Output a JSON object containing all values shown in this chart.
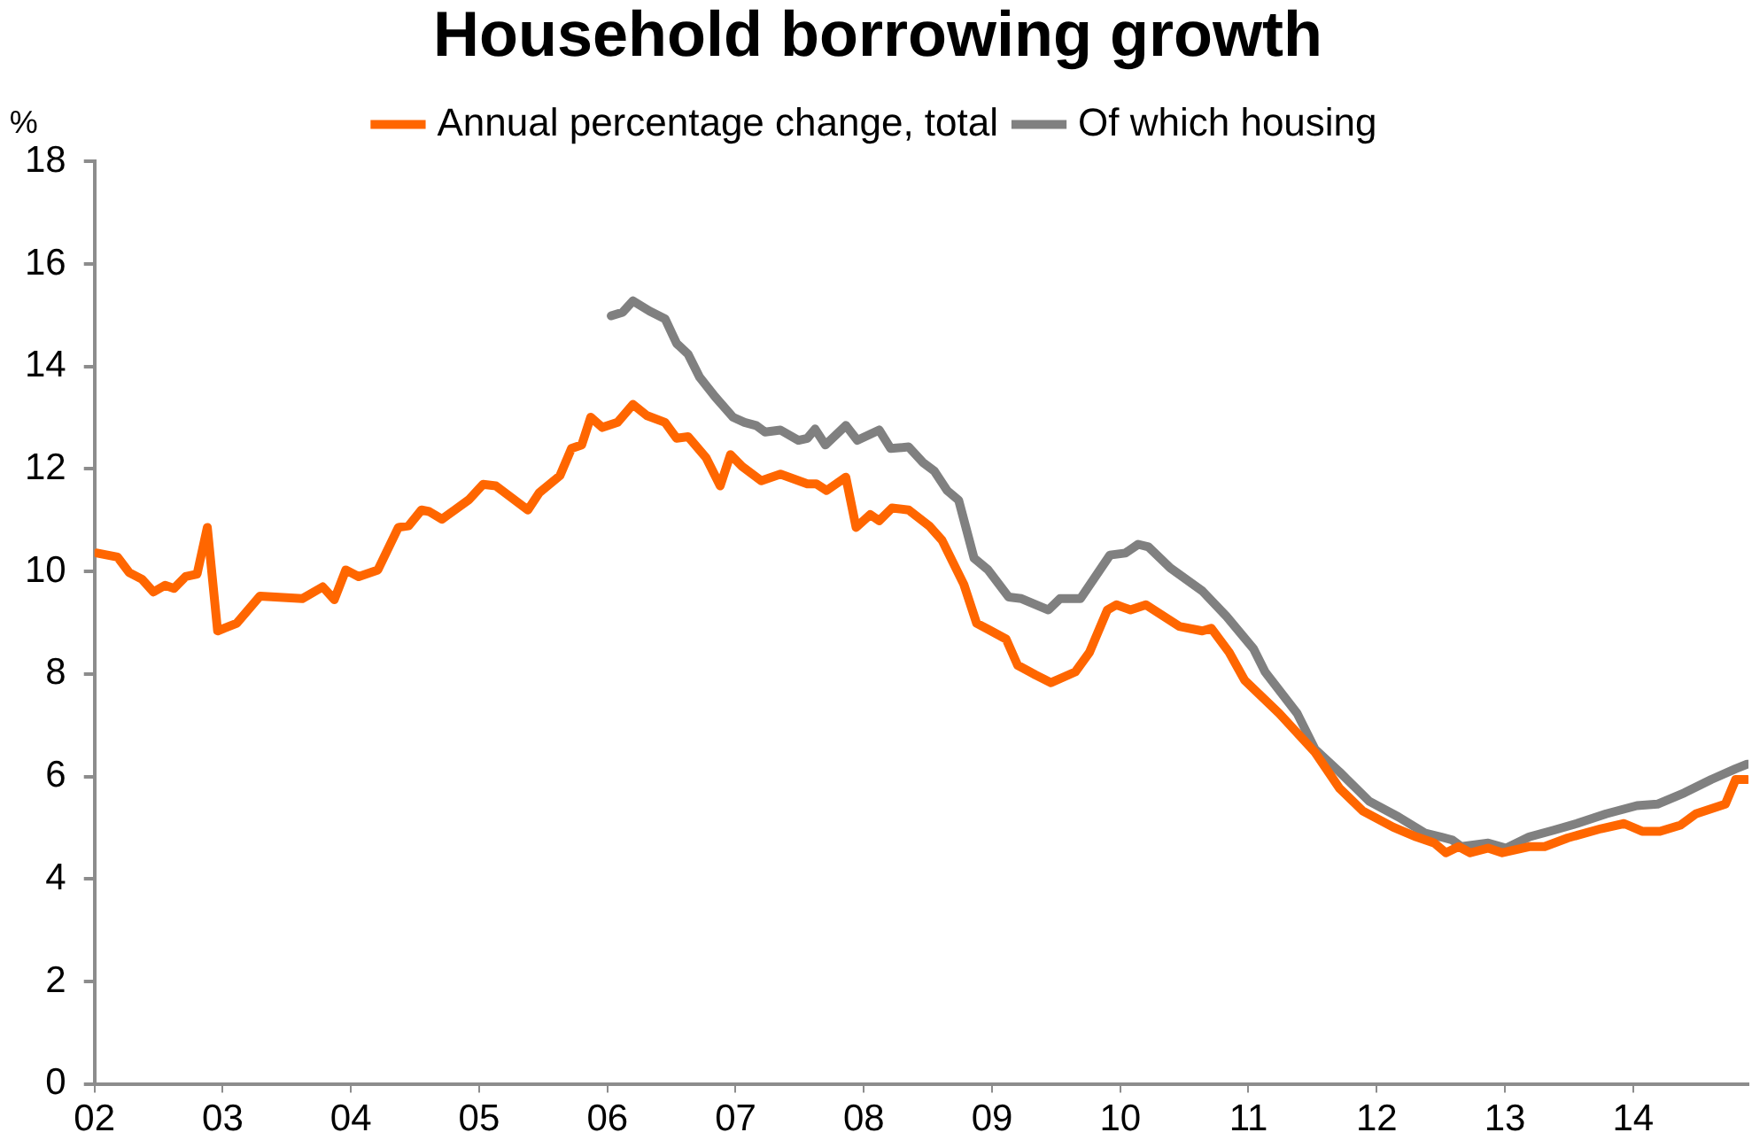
{
  "chart_data": {
    "type": "line",
    "title": "Household borrowing growth",
    "ylabel": "%",
    "xlim": [
      2002,
      2014.9
    ],
    "xticks": [
      {
        "value": 2002,
        "label": "02"
      },
      {
        "value": 2003,
        "label": "03"
      },
      {
        "value": 2004,
        "label": "04"
      },
      {
        "value": 2005,
        "label": "05"
      },
      {
        "value": 2006,
        "label": "06"
      },
      {
        "value": 2007,
        "label": "07"
      },
      {
        "value": 2008,
        "label": "08"
      },
      {
        "value": 2009,
        "label": "09"
      },
      {
        "value": 2010,
        "label": "10"
      },
      {
        "value": 2011,
        "label": "11"
      },
      {
        "value": 2012,
        "label": "12"
      },
      {
        "value": 2013,
        "label": "13"
      },
      {
        "value": 2014,
        "label": "14"
      }
    ],
    "ylim": [
      0,
      18
    ],
    "yticks": [
      0,
      2,
      4,
      6,
      8,
      10,
      12,
      14,
      16,
      18
    ],
    "grid": false,
    "legend": "top",
    "marker": "none",
    "line_style": "solid",
    "series": [
      {
        "name": "Annual percentage change, total",
        "color": "#ff6600",
        "x": [
          2002.02,
          2002.18,
          2002.27,
          2002.37,
          2002.46,
          2002.55,
          2002.62,
          2002.71,
          2002.8,
          2002.88,
          2002.96,
          2003.11,
          2003.29,
          2003.62,
          2003.78,
          2003.87,
          2003.96,
          2004.06,
          2004.21,
          2004.37,
          2004.45,
          2004.55,
          2004.61,
          2004.71,
          2004.92,
          2005.03,
          2005.13,
          2005.38,
          2005.47,
          2005.63,
          2005.72,
          2005.8,
          2005.87,
          2005.96,
          2006.08,
          2006.2,
          2006.31,
          2006.45,
          2006.54,
          2006.63,
          2006.77,
          2006.88,
          2006.96,
          2007.05,
          2007.2,
          2007.35,
          2007.56,
          2007.63,
          2007.71,
          2007.86,
          2007.94,
          2008.05,
          2008.12,
          2008.22,
          2008.35,
          2008.51,
          2008.61,
          2008.78,
          2008.88,
          2008.97,
          2009.11,
          2009.2,
          2009.34,
          2009.46,
          2009.65,
          2009.76,
          2009.9,
          2009.97,
          2010.08,
          2010.2,
          2010.46,
          2010.64,
          2010.71,
          2010.85,
          2010.97,
          2011.24,
          2011.52,
          2011.71,
          2011.89,
          2012.13,
          2012.31,
          2012.45,
          2012.54,
          2012.64,
          2012.73,
          2012.87,
          2012.98,
          2013.19,
          2013.31,
          2013.49,
          2013.75,
          2013.93,
          2014.07,
          2014.21,
          2014.37,
          2014.49,
          2014.72,
          2014.8,
          2014.89
        ],
        "values": [
          10.36,
          10.28,
          9.98,
          9.85,
          9.6,
          9.73,
          9.67,
          9.9,
          9.95,
          10.86,
          8.84,
          8.99,
          9.52,
          9.47,
          9.7,
          9.45,
          10.03,
          9.9,
          10.03,
          10.86,
          10.89,
          11.2,
          11.17,
          11.02,
          11.4,
          11.7,
          11.67,
          11.2,
          11.54,
          11.87,
          12.4,
          12.47,
          13.01,
          12.81,
          12.91,
          13.26,
          13.04,
          12.91,
          12.6,
          12.63,
          12.22,
          11.67,
          12.28,
          12.05,
          11.77,
          11.9,
          11.71,
          11.71,
          11.58,
          11.84,
          10.86,
          11.11,
          10.99,
          11.24,
          11.2,
          10.89,
          10.61,
          9.75,
          8.99,
          8.87,
          8.68,
          8.17,
          7.98,
          7.83,
          8.04,
          8.42,
          9.25,
          9.35,
          9.25,
          9.35,
          8.93,
          8.84,
          8.89,
          8.42,
          7.88,
          7.23,
          6.47,
          5.77,
          5.33,
          5.01,
          4.82,
          4.7,
          4.51,
          4.63,
          4.51,
          4.6,
          4.51,
          4.63,
          4.63,
          4.8,
          4.98,
          5.08,
          4.93,
          4.93,
          5.05,
          5.27,
          5.46,
          5.94,
          5.94
        ]
      },
      {
        "name": "Of which housing",
        "color": "#808080",
        "x": [
          2006.03,
          2006.12,
          2006.2,
          2006.33,
          2006.45,
          2006.54,
          2006.63,
          2006.72,
          2006.84,
          2006.98,
          2007.07,
          2007.16,
          2007.23,
          2007.35,
          2007.49,
          2007.56,
          2007.62,
          2007.7,
          2007.86,
          2007.95,
          2008.12,
          2008.21,
          2008.35,
          2008.46,
          2008.55,
          2008.65,
          2008.74,
          2008.86,
          2008.97,
          2009.13,
          2009.23,
          2009.44,
          2009.53,
          2009.69,
          2009.92,
          2010.04,
          2010.14,
          2010.22,
          2010.39,
          2010.64,
          2010.83,
          2011.04,
          2011.13,
          2011.38,
          2011.52,
          2011.71,
          2011.94,
          2012.17,
          2012.38,
          2012.5,
          2012.59,
          2012.66,
          2012.87,
          2013.01,
          2013.19,
          2013.38,
          2013.56,
          2013.79,
          2014.03,
          2014.19,
          2014.4,
          2014.61,
          2014.8,
          2014.89
        ],
        "values": [
          14.99,
          15.06,
          15.28,
          15.08,
          14.93,
          14.45,
          14.24,
          13.79,
          13.41,
          13.01,
          12.91,
          12.85,
          12.72,
          12.76,
          12.56,
          12.6,
          12.78,
          12.47,
          12.85,
          12.56,
          12.76,
          12.4,
          12.43,
          12.13,
          11.96,
          11.58,
          11.39,
          10.26,
          10.03,
          9.5,
          9.47,
          9.25,
          9.47,
          9.47,
          10.32,
          10.36,
          10.53,
          10.48,
          10.07,
          9.62,
          9.12,
          8.49,
          8.04,
          7.23,
          6.53,
          6.09,
          5.52,
          5.21,
          4.89,
          4.82,
          4.76,
          4.63,
          4.7,
          4.6,
          4.82,
          4.95,
          5.08,
          5.27,
          5.43,
          5.46,
          5.68,
          5.94,
          6.15,
          6.24
        ]
      }
    ]
  }
}
